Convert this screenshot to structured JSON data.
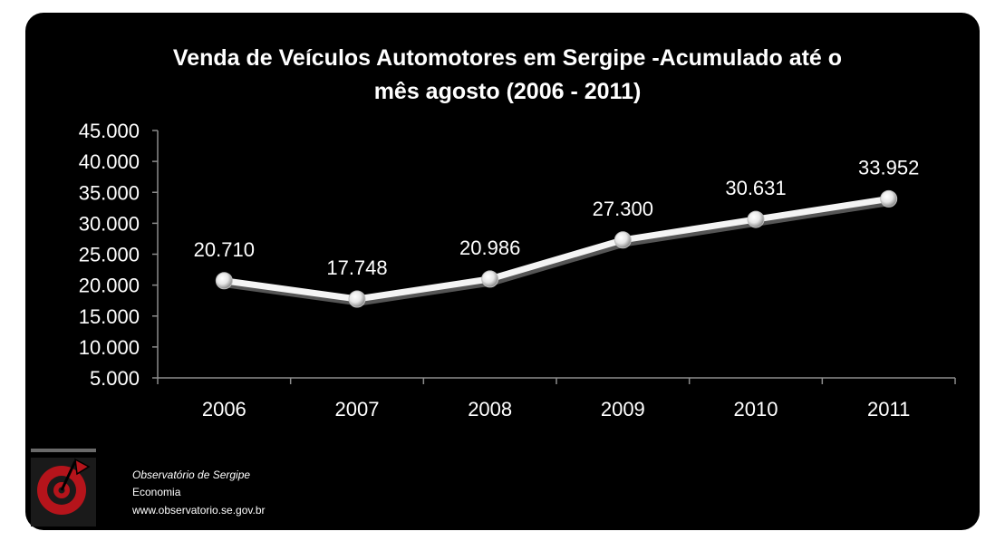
{
  "chart_data": {
    "type": "line",
    "title_line1": "Venda de Veículos Automotores em Sergipe -Acumulado até o",
    "title_line2": "mês agosto (2006 - 2011)",
    "categories": [
      "2006",
      "2007",
      "2008",
      "2009",
      "2010",
      "2011"
    ],
    "values": [
      20710,
      17748,
      20986,
      27300,
      30631,
      33952
    ],
    "data_labels": [
      "20.710",
      "17.748",
      "20.986",
      "27.300",
      "30.631",
      "33.952"
    ],
    "yticks": [
      "5.000",
      "10.000",
      "15.000",
      "20.000",
      "25.000",
      "30.000",
      "35.000",
      "40.000",
      "45.000"
    ],
    "ylim": [
      5000,
      45000
    ],
    "grid": false,
    "legend": "none",
    "colors": {
      "background": "#000000",
      "line": "#ffffff",
      "text": "#ffffff",
      "axis": "#8c8c8c"
    }
  },
  "footer": {
    "org": "Observatório de Sergipe",
    "dept": "Economia",
    "url": "www.observatorio.se.gov.br",
    "logo_icon": "target-flag-logo-icon"
  }
}
